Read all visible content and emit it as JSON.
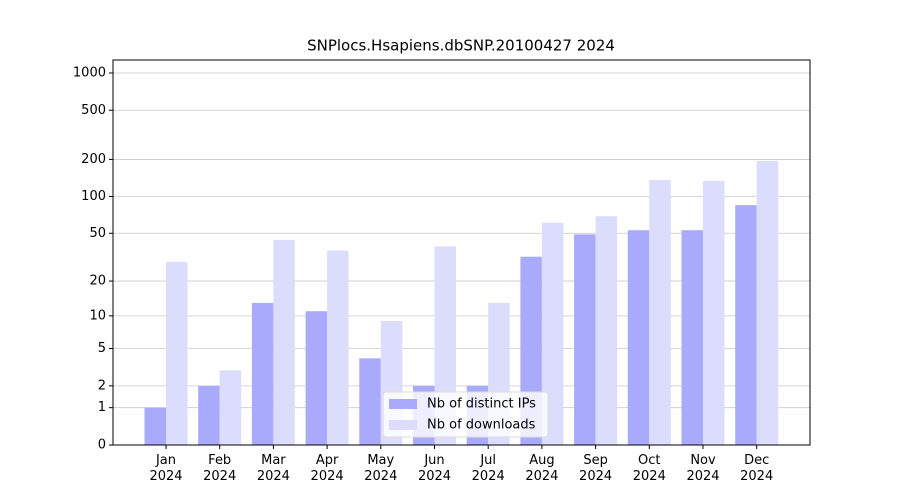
{
  "chart_data": {
    "type": "bar",
    "title": "SNPlocs.Hsapiens.dbSNP.20100427 2024",
    "categories": [
      "Jan\n2024",
      "Feb\n2024",
      "Mar\n2024",
      "Apr\n2024",
      "May\n2024",
      "Jun\n2024",
      "Jul\n2024",
      "Aug\n2024",
      "Sep\n2024",
      "Oct\n2024",
      "Nov\n2024",
      "Dec\n2024"
    ],
    "series": [
      {
        "name": "Nb of distinct IPs",
        "color": "#aaaafc",
        "values": [
          1,
          2,
          13,
          11,
          4,
          2,
          2,
          32,
          49,
          53,
          53,
          85
        ]
      },
      {
        "name": "Nb of downloads",
        "color": "#dcdcfc",
        "values": [
          29,
          3,
          44,
          36,
          9,
          39,
          13,
          61,
          69,
          136,
          134,
          194
        ]
      }
    ],
    "scale": "log1p",
    "ylim": [
      0,
      1273
    ],
    "yticks": [
      0,
      1,
      2,
      5,
      10,
      20,
      50,
      100,
      200,
      500,
      1000
    ],
    "grid": true,
    "legend": "lower center"
  }
}
